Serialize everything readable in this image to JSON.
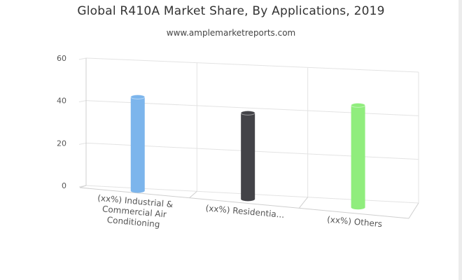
{
  "title": "Global R410A Market Share, By Applications, 2019",
  "subtitle": "www.amplemarketreports.com",
  "chart_data": {
    "type": "bar",
    "title": "Global R410A Market Share, By Applications, 2019",
    "subtitle": "www.amplemarketreports.com",
    "xlabel": "",
    "ylabel": "",
    "ylim": [
      0,
      60
    ],
    "yticks": [
      0,
      20,
      40,
      60
    ],
    "grid": true,
    "legend": "none",
    "categories": [
      [
        "(xx%) Industrial &",
        "Commercial Air",
        "Conditioning"
      ],
      [
        "(xx%) Residentia..."
      ],
      [
        "(xx%) Others"
      ]
    ],
    "values": [
      44,
      40,
      47
    ],
    "colors": [
      "#7cb5ec",
      "#434348",
      "#90ed7d"
    ]
  }
}
